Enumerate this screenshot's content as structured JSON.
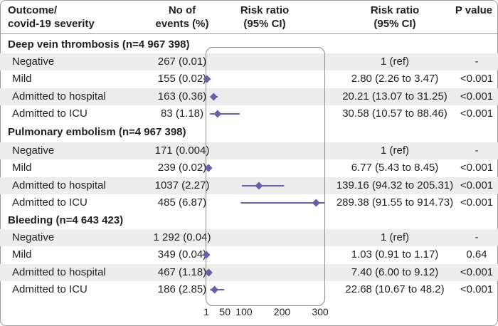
{
  "header": {
    "col_outcome_line1": "Outcome/",
    "col_outcome_line2": "covid-19 severity",
    "col_events_line1": "No of",
    "col_events_line2": "events (%)",
    "col_plot_line1": "Risk ratio",
    "col_plot_line2": "(95% CI)",
    "col_rr_line1": "Risk ratio",
    "col_rr_line2": "(95% CI)",
    "col_p": "P value"
  },
  "sections": [
    {
      "title": "Deep vein thrombosis  (n=4 967 398)",
      "rows": [
        {
          "label": "Negative",
          "events": "267 (0.01)",
          "rr": "1 (ref)",
          "p": "-"
        },
        {
          "label": "Mild",
          "events": "155 (0.02)",
          "rr": "2.80 (2.26 to 3.47)",
          "p": "<0.001"
        },
        {
          "label": "Admitted to hospital",
          "events": "163 (0.36)",
          "rr": "20.21 (13.07 to 31.25)",
          "p": "<0.001"
        },
        {
          "label": "Admitted to ICU",
          "events": "83 (1.18)",
          "rr": "30.58 (10.57 to 88.46)",
          "p": "<0.001"
        }
      ]
    },
    {
      "title": "Pulmonary embolism (n=4 967 398)",
      "rows": [
        {
          "label": "Negative",
          "events": "171 (0.004)",
          "rr": "1 (ref)",
          "p": "-"
        },
        {
          "label": "Mild",
          "events": "239 (0.02)",
          "rr": "6.77 (5.43 to 8.45)",
          "p": "<0.001"
        },
        {
          "label": "Admitted to hospital",
          "events": "1037 (2.27)",
          "rr": "139.16 (94.32 to 205.31)",
          "p": "<0.001"
        },
        {
          "label": "Admitted to ICU",
          "events": "485 (6.87)",
          "rr": "289.38 (91.55 to 914.73)",
          "p": "<0.001"
        }
      ]
    },
    {
      "title": "Bleeding (n=4 643 423)",
      "rows": [
        {
          "label": "Negative",
          "events": "1 292 (0.04)",
          "rr": "1 (ref)",
          "p": "-"
        },
        {
          "label": "Mild",
          "events": "349 (0.04)",
          "rr": "1.03 (0.91 to 1.17)",
          "p": "0.64"
        },
        {
          "label": "Admitted to hospital",
          "events": "467 (1.18)",
          "rr": "7.40 (6.00 to 9.12)",
          "p": "<0.001"
        },
        {
          "label": "Admitted to ICU",
          "events": "186 (2.85)",
          "rr": "22.68 (10.67 to 48.2)",
          "p": "<0.001"
        }
      ]
    }
  ],
  "chart_data": {
    "type": "forest",
    "x_ticks": [
      "1",
      "50",
      "100",
      "200",
      "300"
    ],
    "xlim": [
      1,
      300
    ],
    "marker_color": "#6b5ea8",
    "series": [
      {
        "group": "Deep vein thrombosis",
        "points": [
          {
            "category": "Negative",
            "estimate": null,
            "low": null,
            "high": null
          },
          {
            "category": "Mild",
            "estimate": 2.8,
            "low": 2.26,
            "high": 3.47
          },
          {
            "category": "Admitted to hospital",
            "estimate": 20.21,
            "low": 13.07,
            "high": 31.25
          },
          {
            "category": "Admitted to ICU",
            "estimate": 30.58,
            "low": 10.57,
            "high": 88.46
          }
        ]
      },
      {
        "group": "Pulmonary embolism",
        "points": [
          {
            "category": "Negative",
            "estimate": null,
            "low": null,
            "high": null
          },
          {
            "category": "Mild",
            "estimate": 6.77,
            "low": 5.43,
            "high": 8.45
          },
          {
            "category": "Admitted to hospital",
            "estimate": 139.16,
            "low": 94.32,
            "high": 205.31
          },
          {
            "category": "Admitted to ICU",
            "estimate": 289.38,
            "low": 91.55,
            "high": 914.73
          }
        ]
      },
      {
        "group": "Bleeding",
        "points": [
          {
            "category": "Negative",
            "estimate": null,
            "low": null,
            "high": null
          },
          {
            "category": "Mild",
            "estimate": 1.03,
            "low": 0.91,
            "high": 1.17
          },
          {
            "category": "Admitted to hospital",
            "estimate": 7.4,
            "low": 6.0,
            "high": 9.12
          },
          {
            "category": "Admitted to ICU",
            "estimate": 22.68,
            "low": 10.67,
            "high": 48.2
          }
        ]
      }
    ]
  }
}
